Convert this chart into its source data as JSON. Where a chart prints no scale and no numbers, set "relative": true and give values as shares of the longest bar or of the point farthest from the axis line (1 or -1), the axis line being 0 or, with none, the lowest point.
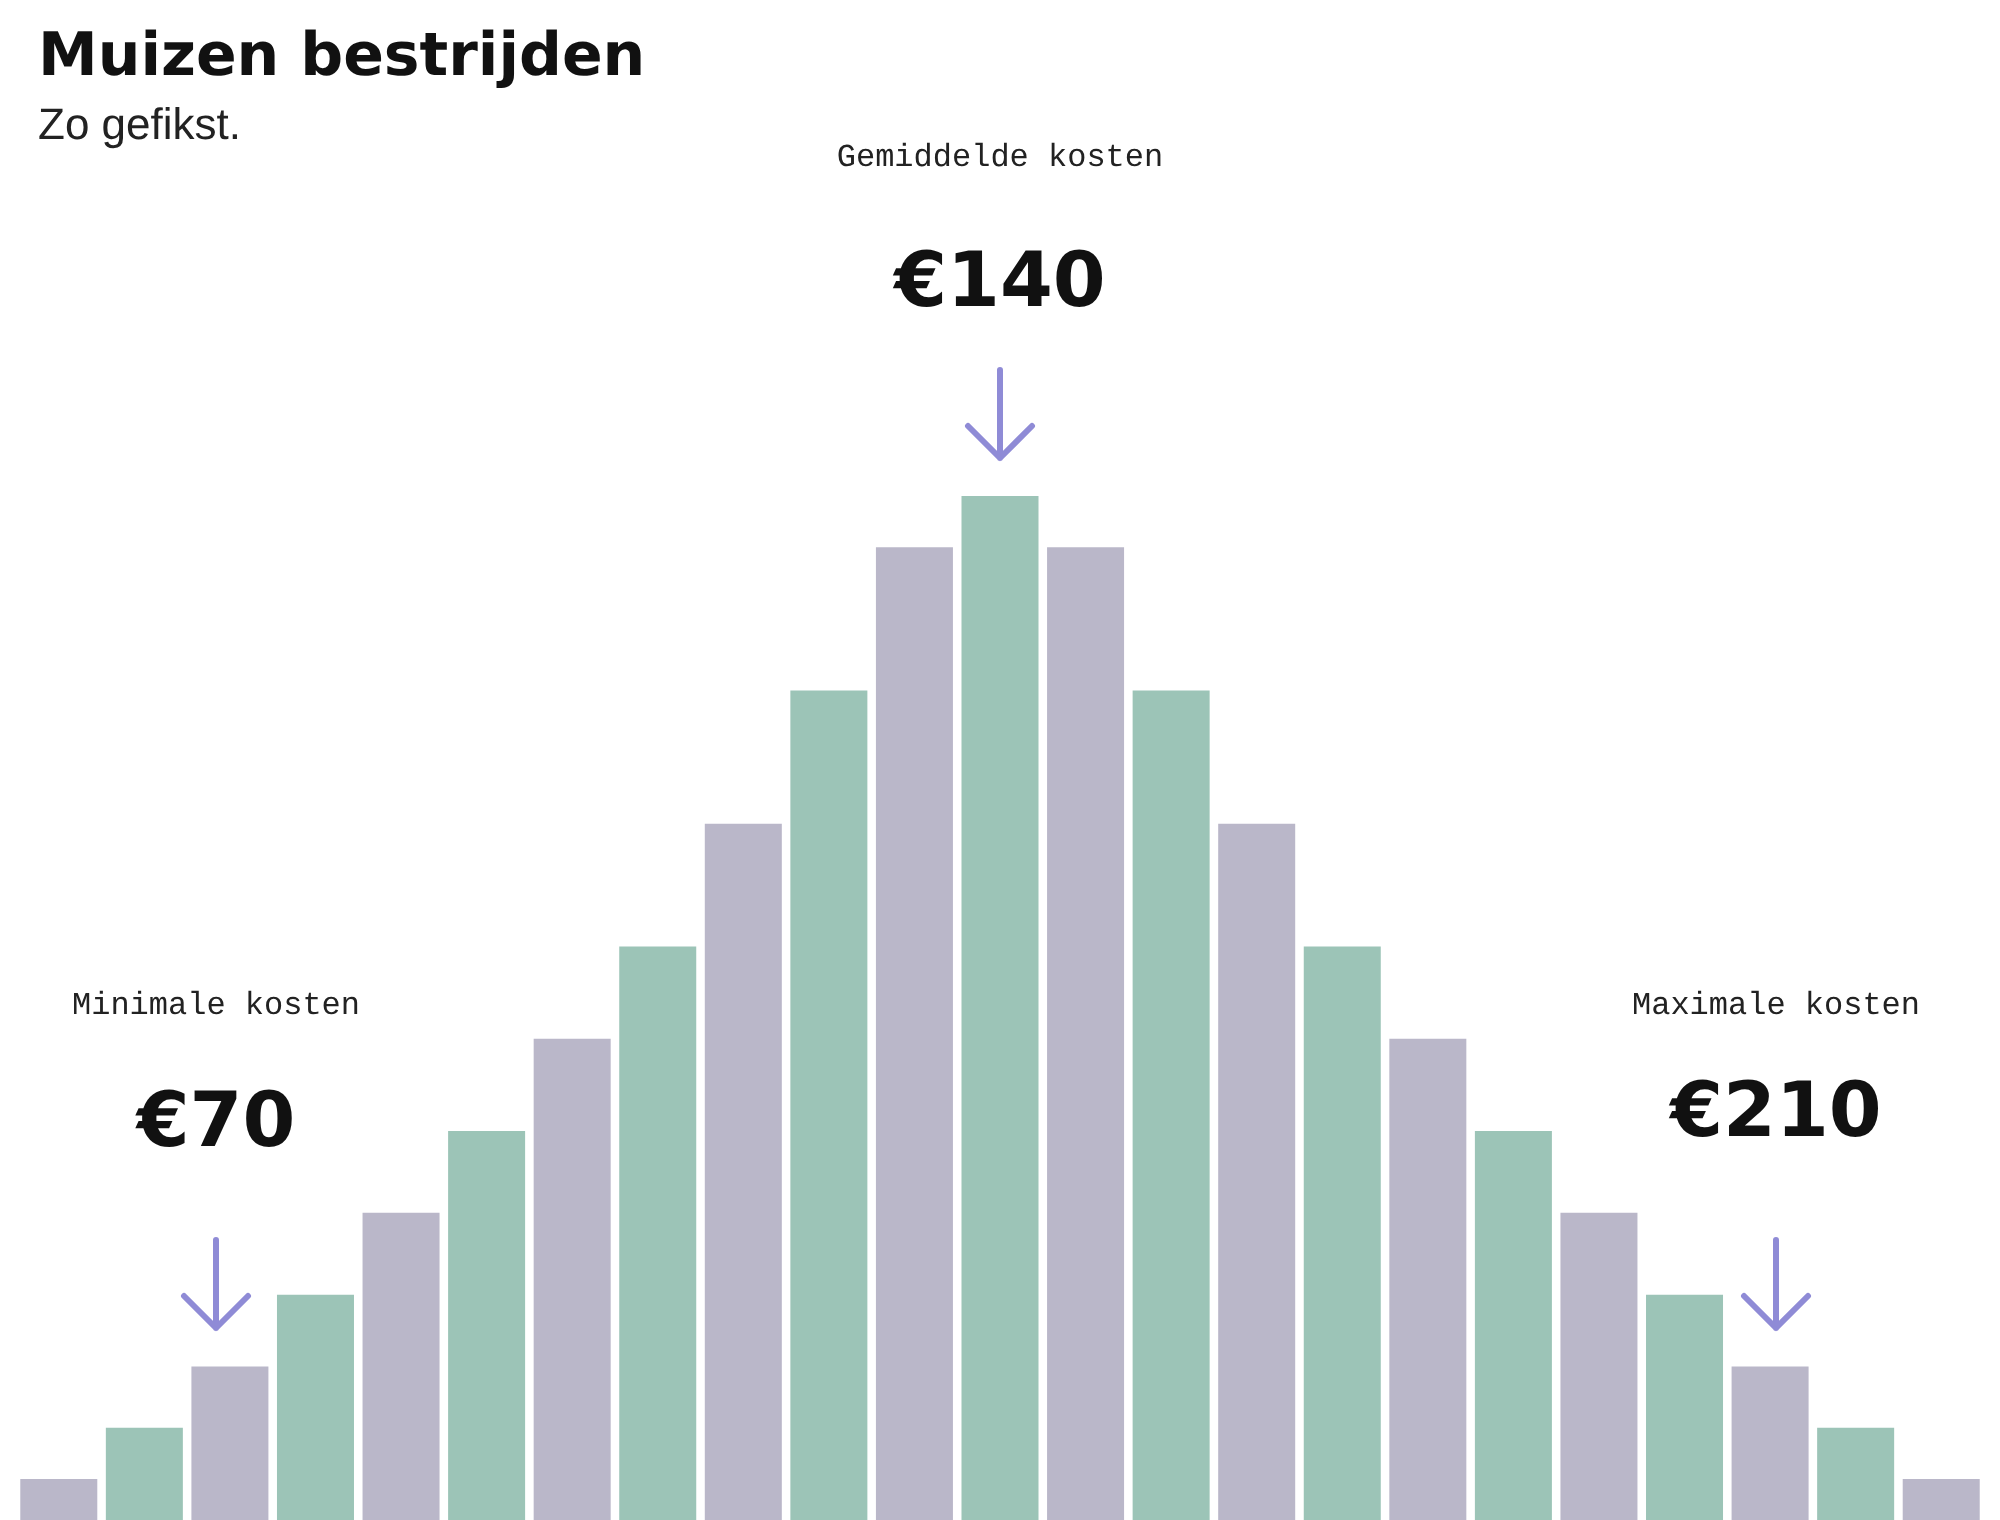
{
  "chart_data": {
    "type": "bar",
    "title": "Muizen bestrijden",
    "subtitle": "Zo gefikst.",
    "relative": true,
    "categories": [
      null,
      null,
      null,
      null,
      null,
      null,
      null,
      null,
      null,
      null,
      null,
      null,
      null,
      null,
      null,
      null,
      null,
      null,
      null,
      null,
      null,
      null,
      null
    ],
    "values": [
      0.04,
      0.09,
      0.15,
      0.22,
      0.3,
      0.38,
      0.47,
      0.56,
      0.68,
      0.81,
      0.95,
      1,
      0.95,
      0.81,
      0.68,
      0.56,
      0.47,
      0.38,
      0.3,
      0.22,
      0.15,
      0.09,
      0.04
    ],
    "colors": [
      "#bab7c9",
      "#9cc4b7",
      "#bab7c9",
      "#9cc4b7",
      "#bab7c9",
      "#9cc4b7",
      "#bab7c9",
      "#9cc4b7",
      "#bab7c9",
      "#9cc4b7",
      "#bab7c9",
      "#9cc4b7",
      "#bab7c9",
      "#9cc4b7",
      "#bab7c9",
      "#9cc4b7",
      "#bab7c9",
      "#9cc4b7",
      "#bab7c9",
      "#9cc4b7",
      "#bab7c9",
      "#9cc4b7",
      "#bab7c9"
    ],
    "annotations": [
      "Minimale kosten",
      "€70",
      "Gemiddelde kosten",
      "€140",
      "Maximale kosten",
      "€210"
    ]
  }
}
